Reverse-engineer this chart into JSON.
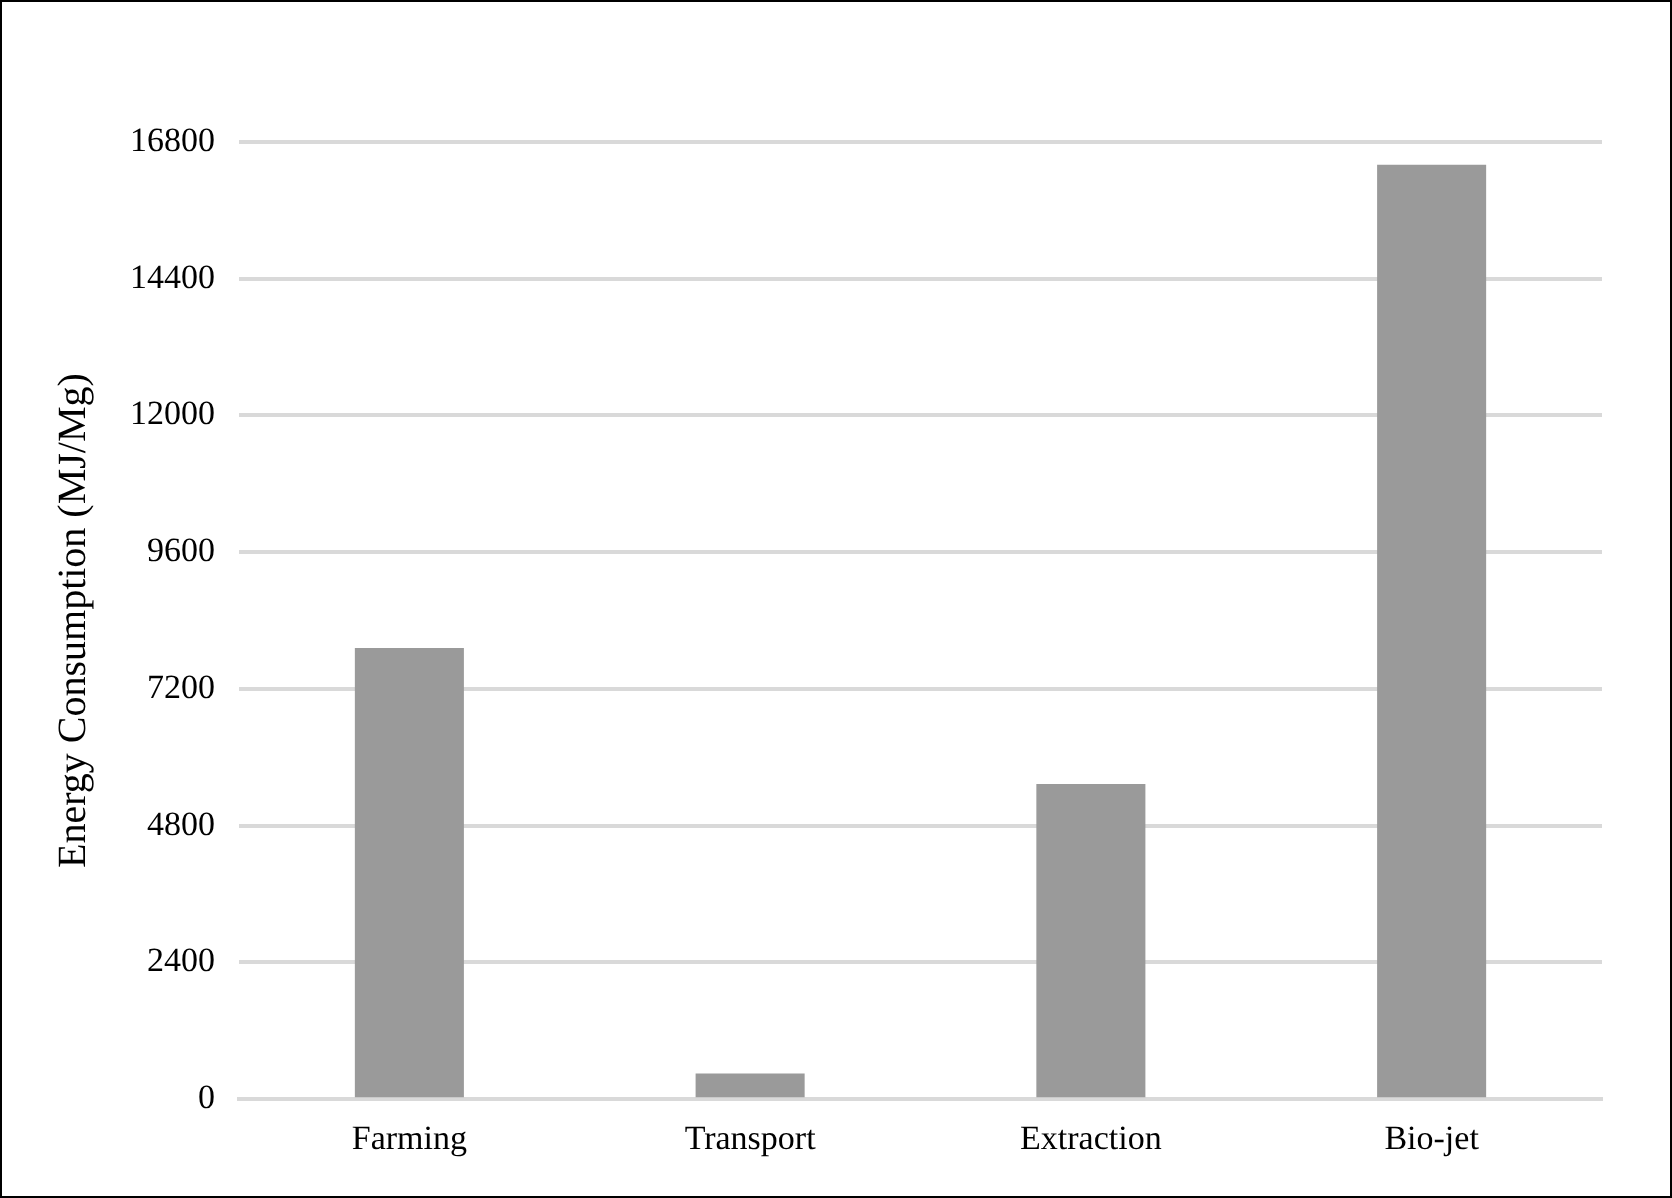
{
  "chart_data": {
    "type": "bar",
    "ylabel": "Energy Consumption (MJ/Mg)",
    "categories": [
      "Farming",
      "Transport",
      "Extraction",
      "Bio-jet"
    ],
    "values": [
      7920,
      450,
      5530,
      16400
    ],
    "color": "#9a9a9a",
    "ylim": [
      0,
      16800
    ],
    "yticks": [
      0,
      2400,
      4800,
      7200,
      9600,
      12000,
      14400,
      16800
    ],
    "grid": "y",
    "legend": false
  }
}
